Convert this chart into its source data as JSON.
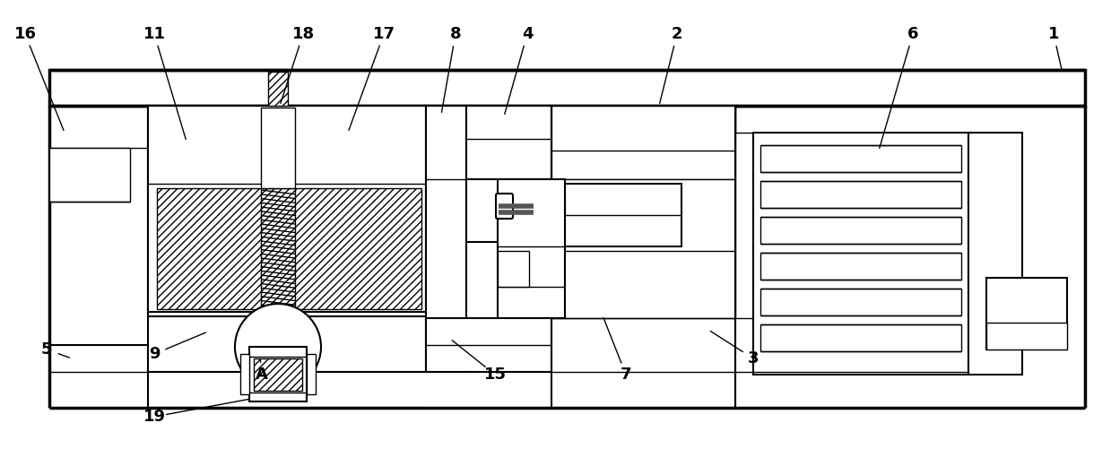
{
  "fig_width": 12.39,
  "fig_height": 5.2,
  "dpi": 100,
  "bg_color": "#ffffff",
  "label_data": [
    [
      "1",
      1175,
      38,
      1185,
      82
    ],
    [
      "2",
      755,
      38,
      735,
      118
    ],
    [
      "3",
      840,
      400,
      790,
      368
    ],
    [
      "4",
      588,
      38,
      562,
      130
    ],
    [
      "5",
      52,
      390,
      80,
      400
    ],
    [
      "6",
      1018,
      38,
      980,
      168
    ],
    [
      "7",
      698,
      418,
      672,
      352
    ],
    [
      "8",
      508,
      38,
      492,
      128
    ],
    [
      "9",
      172,
      395,
      232,
      370
    ],
    [
      "11",
      172,
      38,
      208,
      158
    ],
    [
      "15",
      552,
      418,
      502,
      378
    ],
    [
      "16",
      28,
      38,
      72,
      148
    ],
    [
      "17",
      428,
      38,
      388,
      148
    ],
    [
      "18",
      338,
      38,
      312,
      118
    ],
    [
      "19",
      172,
      465,
      280,
      445
    ],
    [
      "A",
      292,
      418,
      290,
      398
    ]
  ]
}
